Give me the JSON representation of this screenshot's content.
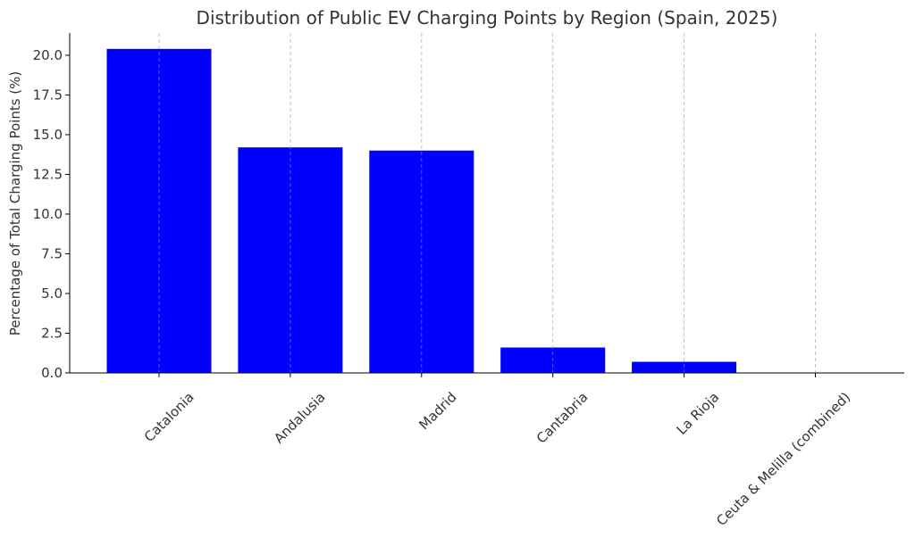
{
  "chart_data": {
    "type": "bar",
    "title": "Distribution of Public EV Charging Points by Region (Spain, 2025)",
    "xlabel": "",
    "ylabel": "Percentage of Total Charging Points (%)",
    "categories": [
      "Catalonia",
      "Andalusia",
      "Madrid",
      "Cantabria",
      "La Rioja",
      "Ceuta & Melilla (combined)"
    ],
    "values": [
      20.4,
      14.2,
      14.0,
      1.6,
      0.7,
      0.0
    ],
    "ylim": [
      0,
      21.4
    ],
    "yticks": [
      "0.0",
      "2.5",
      "5.0",
      "7.5",
      "10.0",
      "12.5",
      "15.0",
      "17.5",
      "20.0"
    ],
    "grid": "x-dashed",
    "bar_color": "#0000ff"
  }
}
